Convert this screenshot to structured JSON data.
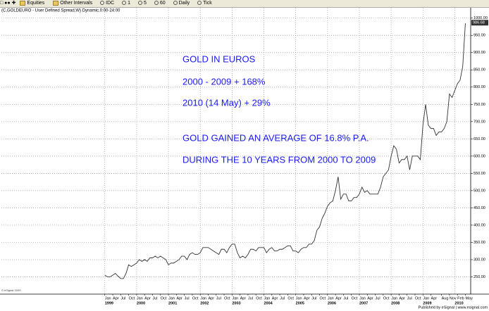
{
  "toolbar": [
    "Equities",
    "Other Intervals",
    "IDC",
    "1",
    "5",
    "60",
    "Daily",
    "Tick"
  ],
  "chart_data": {
    "type": "line",
    "header": "(C,GOLDEURO - User Defined Spread,W) Dynamic,0:00-24:00",
    "copyright": "© eSignal 2009",
    "publisher": "Published by eSignal | www.esignal.com",
    "annotations": [
      "GOLD IN EUROS",
      "2000 - 2009  + 168%",
      "2010 (14 May) + 29%",
      "GOLD GAINED AN AVERAGE OF 16.8% P.A.",
      "DURING THE 10 YEARS FROM 2000 TO 2009"
    ],
    "annotation_color": "#1a1aff",
    "last_value": 986.68,
    "color": "#333333",
    "grid": true,
    "xlim": [
      "1995-10",
      "2010-07"
    ],
    "ylim": [
      200,
      1030
    ],
    "yticks": [
      {
        "value": 250,
        "label": "250.00"
      },
      {
        "value": 300,
        "label": "300.00"
      },
      {
        "value": 350,
        "label": "350.00"
      },
      {
        "value": 400,
        "label": "400.00"
      },
      {
        "value": 450,
        "label": "450.00"
      },
      {
        "value": 500,
        "label": "500.00"
      },
      {
        "value": 550,
        "label": "550.00"
      },
      {
        "value": 600,
        "label": "600.00"
      },
      {
        "value": 650,
        "label": "650.00"
      },
      {
        "value": 700,
        "label": "700.00"
      },
      {
        "value": 750,
        "label": "750.00"
      },
      {
        "value": 800,
        "label": "800.00"
      },
      {
        "value": 850,
        "label": "850.00"
      },
      {
        "value": 900,
        "label": "900.00"
      },
      {
        "value": 950,
        "label": "950.00"
      },
      {
        "value": 1000,
        "label": "1000.00"
      }
    ],
    "xticks": [
      {
        "value": "1999-01",
        "label": "Jan"
      },
      {
        "value": "1999-04",
        "label": "Apr"
      },
      {
        "value": "1999-07",
        "label": "Jul"
      },
      {
        "value": "1999-10",
        "label": "Oct"
      },
      {
        "value": "2000-01",
        "label": "Jan"
      },
      {
        "value": "2000-04",
        "label": "Apr"
      },
      {
        "value": "2000-07",
        "label": "Jul"
      },
      {
        "value": "2000-10",
        "label": "Oct"
      },
      {
        "value": "2001-01",
        "label": "Jan"
      },
      {
        "value": "2001-04",
        "label": "Apr"
      },
      {
        "value": "2001-07",
        "label": "Jul"
      },
      {
        "value": "2001-10",
        "label": "Oct"
      },
      {
        "value": "2002-01",
        "label": "Jan"
      },
      {
        "value": "2002-04",
        "label": "Apr"
      },
      {
        "value": "2002-07",
        "label": "Jul"
      },
      {
        "value": "2002-10",
        "label": "Oct"
      },
      {
        "value": "2003-01",
        "label": "Jan"
      },
      {
        "value": "2003-04",
        "label": "Apr"
      },
      {
        "value": "2003-07",
        "label": "Jul"
      },
      {
        "value": "2003-10",
        "label": "Oct"
      },
      {
        "value": "2004-01",
        "label": "Jan"
      },
      {
        "value": "2004-04",
        "label": "Apr"
      },
      {
        "value": "2004-07",
        "label": "Jul"
      },
      {
        "value": "2004-10",
        "label": "Oct"
      },
      {
        "value": "2005-01",
        "label": "Jan"
      },
      {
        "value": "2005-04",
        "label": "Apr"
      },
      {
        "value": "2005-07",
        "label": "Jul"
      },
      {
        "value": "2005-10",
        "label": "Oct"
      },
      {
        "value": "2006-01",
        "label": "Jan"
      },
      {
        "value": "2006-04",
        "label": "Apr"
      },
      {
        "value": "2006-07",
        "label": "Jul"
      },
      {
        "value": "2006-10",
        "label": "Oct"
      },
      {
        "value": "2007-01",
        "label": "Jan"
      },
      {
        "value": "2007-04",
        "label": "Apr"
      },
      {
        "value": "2007-07",
        "label": "Jul"
      },
      {
        "value": "2007-10",
        "label": "Oct"
      },
      {
        "value": "2008-01",
        "label": "Jan"
      },
      {
        "value": "2008-04",
        "label": "Apr"
      },
      {
        "value": "2008-07",
        "label": "Jul"
      },
      {
        "value": "2008-10",
        "label": "Oct"
      },
      {
        "value": "2009-01",
        "label": "Jan"
      },
      {
        "value": "2009-04",
        "label": "Apr"
      },
      {
        "value": "2009-08",
        "label": "Aug"
      },
      {
        "value": "2009-11",
        "label": "Nov"
      },
      {
        "value": "2010-02",
        "label": "Feb"
      },
      {
        "value": "2010-05",
        "label": "May"
      }
    ],
    "xyears": [
      {
        "value": "1999-01",
        "label": "1999"
      },
      {
        "value": "2000-01",
        "label": "2000"
      },
      {
        "value": "2001-01",
        "label": "2001"
      },
      {
        "value": "2002-01",
        "label": "2002"
      },
      {
        "value": "2003-01",
        "label": "2003"
      },
      {
        "value": "2004-01",
        "label": "2004"
      },
      {
        "value": "2005-01",
        "label": "2005"
      },
      {
        "value": "2006-01",
        "label": "2006"
      },
      {
        "value": "2007-01",
        "label": "2007"
      },
      {
        "value": "2008-01",
        "label": "2008"
      },
      {
        "value": "2009-01",
        "label": "2009"
      },
      {
        "value": "2010-01",
        "label": "2010"
      }
    ],
    "x": [
      "1999-01",
      "1999-02",
      "1999-03",
      "1999-04",
      "1999-05",
      "1999-06",
      "1999-07",
      "1999-08",
      "1999-09",
      "1999-10",
      "1999-11",
      "1999-12",
      "2000-01",
      "2000-02",
      "2000-03",
      "2000-04",
      "2000-05",
      "2000-06",
      "2000-07",
      "2000-08",
      "2000-09",
      "2000-10",
      "2000-11",
      "2000-12",
      "2001-01",
      "2001-02",
      "2001-03",
      "2001-04",
      "2001-05",
      "2001-06",
      "2001-07",
      "2001-08",
      "2001-09",
      "2001-10",
      "2001-11",
      "2001-12",
      "2002-01",
      "2002-02",
      "2002-03",
      "2002-04",
      "2002-05",
      "2002-06",
      "2002-07",
      "2002-08",
      "2002-09",
      "2002-10",
      "2002-11",
      "2002-12",
      "2003-01",
      "2003-02",
      "2003-03",
      "2003-04",
      "2003-05",
      "2003-06",
      "2003-07",
      "2003-08",
      "2003-09",
      "2003-10",
      "2003-11",
      "2003-12",
      "2004-01",
      "2004-02",
      "2004-03",
      "2004-04",
      "2004-05",
      "2004-06",
      "2004-07",
      "2004-08",
      "2004-09",
      "2004-10",
      "2004-11",
      "2004-12",
      "2005-01",
      "2005-02",
      "2005-03",
      "2005-04",
      "2005-05",
      "2005-06",
      "2005-07",
      "2005-08",
      "2005-09",
      "2005-10",
      "2005-11",
      "2005-12",
      "2006-01",
      "2006-02",
      "2006-03",
      "2006-04",
      "2006-05",
      "2006-06",
      "2006-07",
      "2006-08",
      "2006-09",
      "2006-10",
      "2006-11",
      "2006-12",
      "2007-01",
      "2007-02",
      "2007-03",
      "2007-04",
      "2007-05",
      "2007-06",
      "2007-07",
      "2007-08",
      "2007-09",
      "2007-10",
      "2007-11",
      "2007-12",
      "2008-01",
      "2008-02",
      "2008-03",
      "2008-04",
      "2008-05",
      "2008-06",
      "2008-07",
      "2008-08",
      "2008-09",
      "2008-10",
      "2008-11",
      "2008-12",
      "2009-01",
      "2009-02",
      "2009-03",
      "2009-04",
      "2009-05",
      "2009-06",
      "2009-07",
      "2009-08",
      "2009-09",
      "2009-10",
      "2009-11",
      "2009-12",
      "2010-01",
      "2010-02",
      "2010-03",
      "2010-04",
      "2010-05"
    ],
    "values": [
      255,
      250,
      250,
      255,
      260,
      252,
      245,
      245,
      260,
      285,
      280,
      285,
      290,
      300,
      295,
      300,
      295,
      305,
      305,
      310,
      305,
      310,
      305,
      300,
      285,
      290,
      290,
      295,
      300,
      310,
      310,
      300,
      315,
      320,
      315,
      315,
      320,
      335,
      335,
      335,
      330,
      325,
      320,
      315,
      330,
      330,
      320,
      335,
      345,
      345,
      320,
      305,
      310,
      305,
      315,
      330,
      330,
      325,
      335,
      335,
      335,
      320,
      330,
      335,
      325,
      325,
      330,
      330,
      335,
      340,
      340,
      325,
      325,
      320,
      330,
      335,
      335,
      345,
      345,
      355,
      385,
      395,
      420,
      435,
      455,
      465,
      470,
      500,
      540,
      475,
      490,
      490,
      470,
      470,
      480,
      480,
      490,
      510,
      495,
      500,
      490,
      490,
      490,
      490,
      510,
      540,
      550,
      560,
      600,
      630,
      620,
      580,
      590,
      590,
      600,
      560,
      600,
      600,
      600,
      590,
      690,
      750,
      690,
      680,
      680,
      660,
      670,
      670,
      680,
      700,
      780,
      770,
      790,
      810,
      820,
      860,
      985
    ]
  }
}
